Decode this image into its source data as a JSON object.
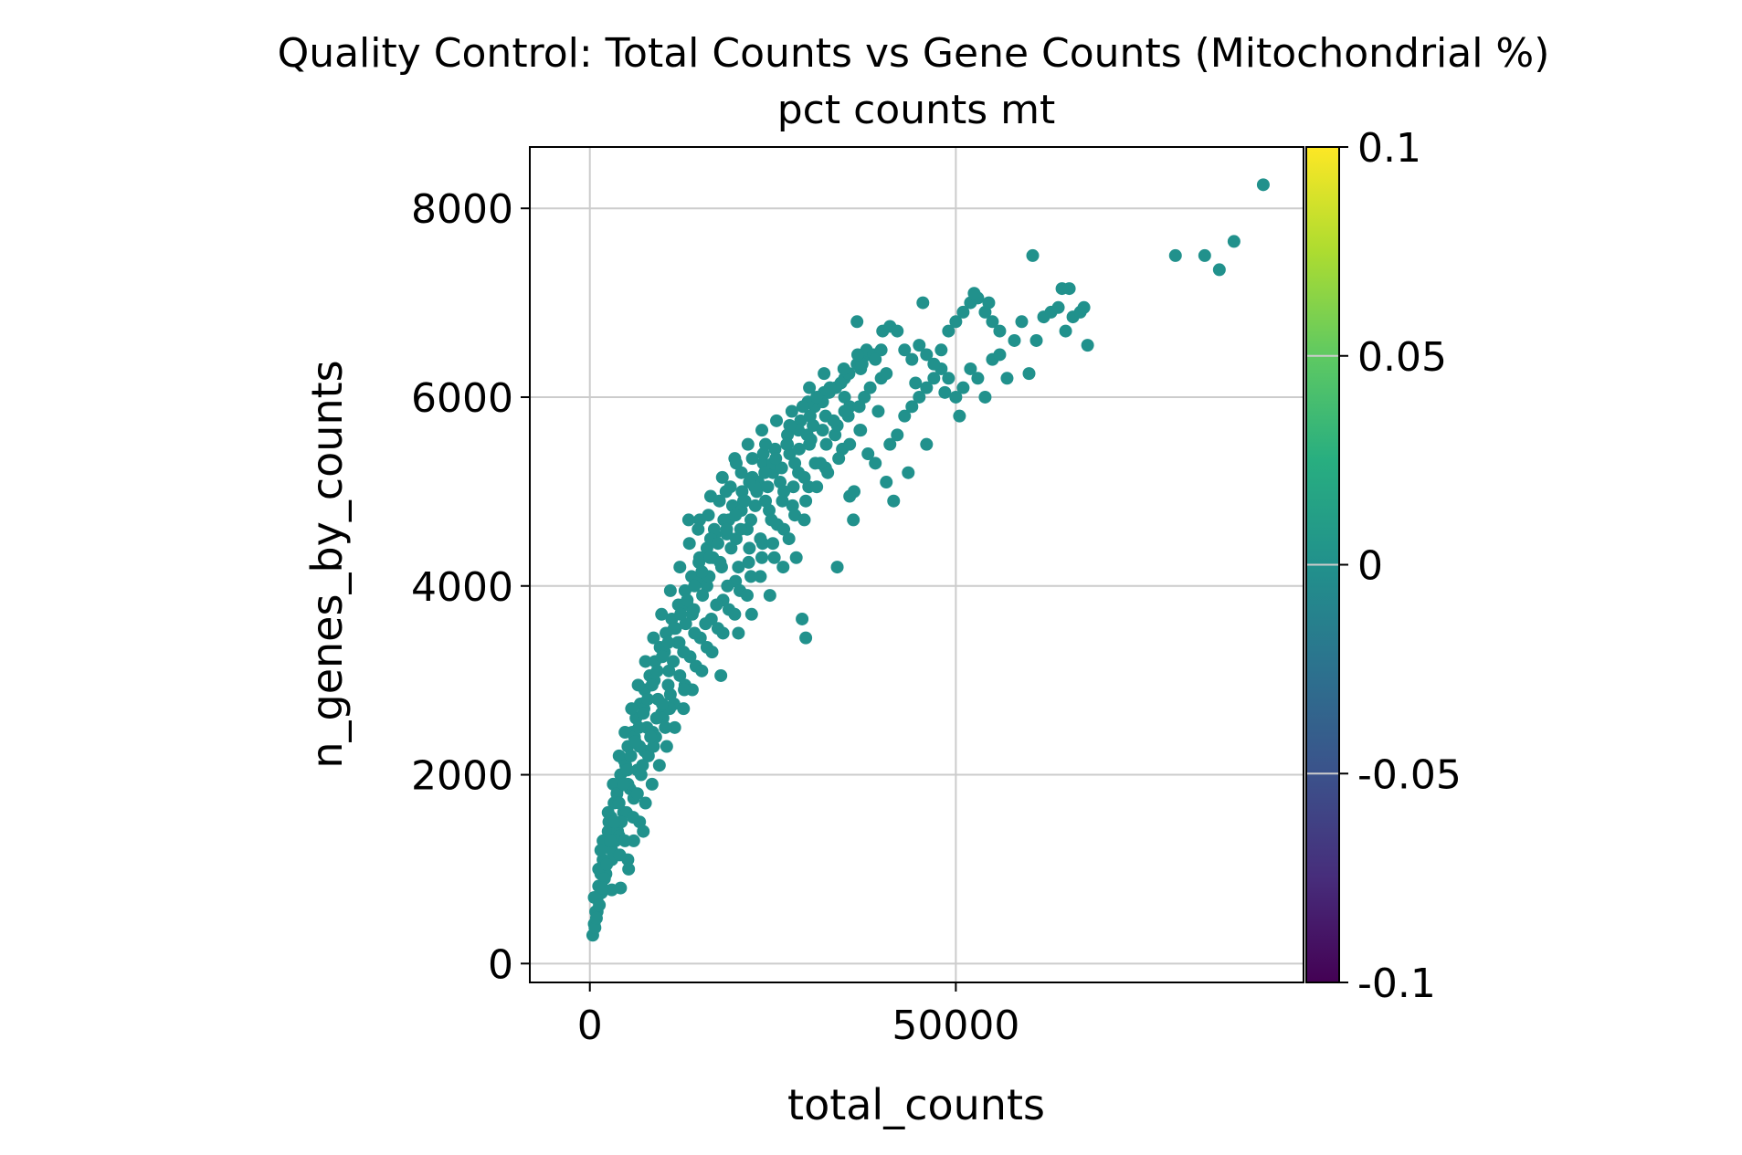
{
  "chart_data": {
    "type": "scatter",
    "title": "Quality Control: Total Counts vs Gene Counts (Mitochondrial %)",
    "subtitle": "pct counts mt",
    "xlabel": "total_counts",
    "ylabel": "n_genes_by_counts",
    "xlim": [
      -8200,
      97500
    ],
    "ylim": [
      -200,
      8650
    ],
    "x_ticks": [
      0,
      50000
    ],
    "x_tick_labels": [
      "0",
      "50000"
    ],
    "y_ticks": [
      0,
      2000,
      4000,
      6000,
      8000
    ],
    "y_tick_labels": [
      "0",
      "2000",
      "4000",
      "6000",
      "8000"
    ],
    "grid": true,
    "point_color": "#21918c",
    "colorbar": {
      "label": "pct counts mt",
      "range": [
        -0.1,
        0.1
      ],
      "ticks": [
        0.1,
        0.05,
        0,
        -0.05,
        -0.1
      ],
      "tick_labels": [
        "0.1",
        "0.05",
        "0",
        "-0.05",
        "-0.1"
      ],
      "colormap": "viridis"
    },
    "points_summary": "~3000 cells; dense band from (0,300) curving up to (35000,6000); sampled points below",
    "points": [
      [
        400,
        300
      ],
      [
        600,
        420
      ],
      [
        800,
        550
      ],
      [
        1000,
        700
      ],
      [
        1200,
        820
      ],
      [
        1500,
        950
      ],
      [
        1800,
        1100
      ],
      [
        2100,
        1250
      ],
      [
        2500,
        1400
      ],
      [
        2900,
        1550
      ],
      [
        3300,
        1700
      ],
      [
        3800,
        1850
      ],
      [
        4200,
        2000
      ],
      [
        4700,
        2150
      ],
      [
        5200,
        2300
      ],
      [
        5800,
        2450
      ],
      [
        6300,
        2600
      ],
      [
        6900,
        2750
      ],
      [
        7500,
        2900
      ],
      [
        8200,
        3050
      ],
      [
        8900,
        3200
      ],
      [
        9600,
        3350
      ],
      [
        10400,
        3500
      ],
      [
        11200,
        3650
      ],
      [
        12100,
        3800
      ],
      [
        13000,
        3950
      ],
      [
        13900,
        4100
      ],
      [
        14900,
        4250
      ],
      [
        16000,
        4400
      ],
      [
        17100,
        4550
      ],
      [
        18300,
        4700
      ],
      [
        19500,
        4850
      ],
      [
        20800,
        5000
      ],
      [
        22200,
        5150
      ],
      [
        23700,
        5300
      ],
      [
        25300,
        5450
      ],
      [
        27000,
        5600
      ],
      [
        28800,
        5750
      ],
      [
        30700,
        5900
      ],
      [
        32700,
        6050
      ],
      [
        34800,
        6200
      ],
      [
        36500,
        6350
      ],
      [
        38000,
        6450
      ],
      [
        1000,
        550
      ],
      [
        1600,
        750
      ],
      [
        2200,
        950
      ],
      [
        3000,
        1200
      ],
      [
        3800,
        1400
      ],
      [
        4600,
        1600
      ],
      [
        5500,
        1850
      ],
      [
        6500,
        2050
      ],
      [
        7500,
        2250
      ],
      [
        8600,
        2450
      ],
      [
        9800,
        2650
      ],
      [
        11000,
        2850
      ],
      [
        12300,
        3050
      ],
      [
        13700,
        3250
      ],
      [
        15100,
        3450
      ],
      [
        16600,
        3650
      ],
      [
        18200,
        3850
      ],
      [
        19900,
        4050
      ],
      [
        21700,
        4250
      ],
      [
        23600,
        4450
      ],
      [
        25600,
        4650
      ],
      [
        27700,
        4850
      ],
      [
        29900,
        5050
      ],
      [
        32200,
        5250
      ],
      [
        34500,
        5450
      ],
      [
        36900,
        5650
      ],
      [
        39400,
        5850
      ],
      [
        600,
        700
      ],
      [
        1200,
        1000
      ],
      [
        1800,
        1300
      ],
      [
        2500,
        1600
      ],
      [
        3200,
        1900
      ],
      [
        4000,
        2200
      ],
      [
        4800,
        2450
      ],
      [
        5700,
        2700
      ],
      [
        6600,
        2950
      ],
      [
        7600,
        3200
      ],
      [
        8700,
        3450
      ],
      [
        9800,
        3700
      ],
      [
        11000,
        3950
      ],
      [
        12300,
        4200
      ],
      [
        13600,
        4450
      ],
      [
        15000,
        4700
      ],
      [
        16500,
        4950
      ],
      [
        18100,
        5150
      ],
      [
        19800,
        5350
      ],
      [
        21600,
        5500
      ],
      [
        23500,
        5650
      ],
      [
        25500,
        5750
      ],
      [
        27600,
        5850
      ],
      [
        29800,
        5950
      ],
      [
        32000,
        6050
      ],
      [
        34300,
        6150
      ],
      [
        2000,
        900
      ],
      [
        3000,
        1100
      ],
      [
        4000,
        1350
      ],
      [
        5000,
        1600
      ],
      [
        6000,
        1750
      ],
      [
        7000,
        2000
      ],
      [
        8000,
        2200
      ],
      [
        9000,
        2400
      ],
      [
        10000,
        2600
      ],
      [
        11500,
        2750
      ],
      [
        13000,
        2950
      ],
      [
        14500,
        3150
      ],
      [
        16000,
        3350
      ],
      [
        17500,
        3550
      ],
      [
        19000,
        3750
      ],
      [
        20500,
        3950
      ],
      [
        22000,
        4100
      ],
      [
        23500,
        4300
      ],
      [
        25000,
        4450
      ],
      [
        26500,
        4600
      ],
      [
        28000,
        4750
      ],
      [
        29500,
        4900
      ],
      [
        31000,
        5050
      ],
      [
        32500,
        5200
      ],
      [
        34000,
        5350
      ],
      [
        35500,
        5500
      ],
      [
        37000,
        5650
      ],
      [
        1500,
        1200
      ],
      [
        2600,
        1500
      ],
      [
        3700,
        1800
      ],
      [
        4900,
        2100
      ],
      [
        6100,
        2400
      ],
      [
        7400,
        2700
      ],
      [
        8800,
        3000
      ],
      [
        10200,
        3300
      ],
      [
        11700,
        3550
      ],
      [
        13300,
        3800
      ],
      [
        15000,
        4050
      ],
      [
        16800,
        4300
      ],
      [
        18700,
        4550
      ],
      [
        20700,
        4800
      ],
      [
        22800,
        5000
      ],
      [
        25000,
        5200
      ],
      [
        27300,
        5400
      ],
      [
        29700,
        5600
      ],
      [
        32200,
        5800
      ],
      [
        34800,
        6000
      ],
      [
        12000,
        3400
      ],
      [
        14000,
        3700
      ],
      [
        16000,
        4000
      ],
      [
        18000,
        4200
      ],
      [
        20000,
        4500
      ],
      [
        22000,
        4700
      ],
      [
        24000,
        4900
      ],
      [
        26000,
        5100
      ],
      [
        28000,
        5300
      ],
      [
        30000,
        5500
      ],
      [
        17000,
        4600
      ],
      [
        19000,
        4700
      ],
      [
        21000,
        4900
      ],
      [
        23000,
        5100
      ],
      [
        25000,
        5300
      ],
      [
        27000,
        5500
      ],
      [
        15000,
        4300
      ],
      [
        16500,
        4500
      ],
      [
        21500,
        4600
      ],
      [
        24500,
        4800
      ],
      [
        28500,
        5200
      ],
      [
        31500,
        5300
      ],
      [
        33500,
        5600
      ],
      [
        35500,
        5900
      ],
      [
        37500,
        6000
      ],
      [
        30500,
        5700
      ],
      [
        26500,
        5000
      ],
      [
        3500,
        1300
      ],
      [
        4300,
        1500
      ],
      [
        5200,
        1900
      ],
      [
        6800,
        2300
      ],
      [
        7800,
        2500
      ],
      [
        9300,
        2800
      ],
      [
        10800,
        3100
      ],
      [
        12800,
        3300
      ],
      [
        14300,
        3500
      ],
      [
        15800,
        3600
      ],
      [
        17300,
        3800
      ],
      [
        18800,
        4000
      ],
      [
        20300,
        4200
      ],
      [
        21800,
        4400
      ],
      [
        23300,
        4500
      ],
      [
        24800,
        4700
      ],
      [
        26300,
        4900
      ],
      [
        27800,
        5050
      ],
      [
        29300,
        5150
      ],
      [
        30800,
        5300
      ],
      [
        32300,
        5500
      ],
      [
        33800,
        5700
      ],
      [
        35300,
        5800
      ],
      [
        36800,
        5900
      ],
      [
        38300,
        6100
      ],
      [
        39800,
        6200
      ],
      [
        4200,
        800
      ],
      [
        5200,
        1100
      ],
      [
        6000,
        1300
      ],
      [
        6800,
        1500
      ],
      [
        7600,
        1700
      ],
      [
        8500,
        1900
      ],
      [
        9500,
        2100
      ],
      [
        10500,
        2300
      ],
      [
        11600,
        2500
      ],
      [
        12800,
        2700
      ],
      [
        14000,
        2900
      ],
      [
        15300,
        3100
      ],
      [
        16700,
        3300
      ],
      [
        18200,
        3500
      ],
      [
        19800,
        3700
      ],
      [
        21500,
        3900
      ],
      [
        23300,
        4100
      ],
      [
        25200,
        4300
      ],
      [
        27200,
        4500
      ],
      [
        29300,
        4700
      ],
      [
        5300,
        1000
      ],
      [
        7300,
        1400
      ],
      [
        10900,
        2700
      ],
      [
        12900,
        2900
      ],
      [
        8700,
        2300
      ],
      [
        10300,
        2500
      ],
      [
        17900,
        3050
      ],
      [
        20300,
        3500
      ],
      [
        22100,
        3700
      ],
      [
        24600,
        3900
      ],
      [
        26400,
        4200
      ],
      [
        28200,
        4300
      ],
      [
        29000,
        3650
      ],
      [
        29500,
        3450
      ],
      [
        33800,
        4200
      ],
      [
        36000,
        4700
      ],
      [
        35500,
        4950
      ],
      [
        36100,
        5000
      ],
      [
        38000,
        5400
      ],
      [
        39000,
        5300
      ],
      [
        40500,
        5100
      ],
      [
        41000,
        5500
      ],
      [
        42000,
        5600
      ],
      [
        43000,
        5800
      ],
      [
        44000,
        5900
      ],
      [
        45000,
        6000
      ],
      [
        46000,
        6100
      ],
      [
        47000,
        6200
      ],
      [
        48000,
        6300
      ],
      [
        49000,
        6200
      ],
      [
        50000,
        6000
      ],
      [
        51000,
        6100
      ],
      [
        52000,
        6300
      ],
      [
        53000,
        6200
      ],
      [
        54000,
        6000
      ],
      [
        55000,
        6400
      ],
      [
        56000,
        6450
      ],
      [
        57000,
        6200
      ],
      [
        58000,
        6600
      ],
      [
        59000,
        6800
      ],
      [
        60000,
        6250
      ],
      [
        61000,
        6600
      ],
      [
        62000,
        6850
      ],
      [
        63000,
        6900
      ],
      [
        64000,
        6950
      ],
      [
        65000,
        6700
      ],
      [
        66000,
        6850
      ],
      [
        67000,
        6900
      ],
      [
        68000,
        6550
      ],
      [
        67500,
        6950
      ],
      [
        64500,
        7150
      ],
      [
        65500,
        7150
      ],
      [
        60500,
        7500
      ],
      [
        40000,
        6700
      ],
      [
        41000,
        6750
      ],
      [
        42000,
        6700
      ],
      [
        43000,
        6500
      ],
      [
        44000,
        6400
      ],
      [
        45000,
        6550
      ],
      [
        46000,
        6450
      ],
      [
        47000,
        6350
      ],
      [
        48000,
        6500
      ],
      [
        49000,
        6700
      ],
      [
        50000,
        6800
      ],
      [
        51000,
        6900
      ],
      [
        52000,
        7000
      ],
      [
        53000,
        7050
      ],
      [
        54000,
        6900
      ],
      [
        55000,
        6800
      ],
      [
        56000,
        6700
      ],
      [
        45500,
        7000
      ],
      [
        52500,
        7100
      ],
      [
        54500,
        7000
      ],
      [
        50500,
        5800
      ],
      [
        48500,
        6050
      ],
      [
        44500,
        6150
      ],
      [
        46000,
        5500
      ],
      [
        43500,
        5200
      ],
      [
        41500,
        4900
      ],
      [
        36500,
        6800
      ],
      [
        37800,
        6500
      ],
      [
        38800,
        6450
      ],
      [
        39800,
        6500
      ],
      [
        40500,
        6250
      ],
      [
        37000,
        6300
      ],
      [
        80000,
        7500
      ],
      [
        84000,
        7500
      ],
      [
        86000,
        7350
      ],
      [
        88000,
        7650
      ],
      [
        92000,
        8250
      ],
      [
        3000,
        780
      ],
      [
        4100,
        1150
      ],
      [
        4800,
        1300
      ],
      [
        5900,
        1550
      ],
      [
        6500,
        1800
      ],
      [
        7200,
        2100
      ],
      [
        8300,
        2400
      ],
      [
        9100,
        2600
      ],
      [
        9900,
        2750
      ],
      [
        10700,
        2950
      ],
      [
        11400,
        3200
      ],
      [
        12200,
        3400
      ],
      [
        13100,
        3600
      ],
      [
        14200,
        3750
      ],
      [
        15400,
        3900
      ],
      [
        16300,
        4100
      ],
      [
        17800,
        4250
      ],
      [
        19300,
        4400
      ],
      [
        20600,
        4600
      ],
      [
        22600,
        4850
      ],
      [
        24300,
        5050
      ],
      [
        26200,
        5250
      ],
      [
        28600,
        5450
      ],
      [
        30200,
        5550
      ],
      [
        31800,
        5650
      ],
      [
        33300,
        5750
      ],
      [
        34800,
        5850
      ],
      [
        700,
        380
      ],
      [
        900,
        480
      ],
      [
        1300,
        620
      ],
      [
        1700,
        800
      ],
      [
        2300,
        1050
      ],
      [
        2800,
        1300
      ],
      [
        3400,
        1500
      ],
      [
        4000,
        1700
      ],
      [
        4600,
        1900
      ],
      [
        5100,
        2050
      ],
      [
        5600,
        2200
      ],
      [
        6200,
        2350
      ],
      [
        6700,
        2500
      ],
      [
        7300,
        2650
      ],
      [
        7900,
        2800
      ],
      [
        8500,
        2950
      ],
      [
        9200,
        3100
      ],
      [
        9900,
        3250
      ],
      [
        10700,
        3400
      ],
      [
        11500,
        3550
      ],
      [
        12400,
        3700
      ],
      [
        13300,
        3850
      ],
      [
        14300,
        4000
      ],
      [
        15300,
        4150
      ],
      [
        16400,
        4300
      ],
      [
        17500,
        4450
      ],
      [
        18700,
        4600
      ],
      [
        19900,
        4750
      ],
      [
        21200,
        4900
      ],
      [
        22500,
        5050
      ],
      [
        23900,
        5200
      ],
      [
        25400,
        5350
      ],
      [
        26900,
        5500
      ],
      [
        28500,
        5650
      ],
      [
        30100,
        5800
      ],
      [
        31800,
        5950
      ],
      [
        33600,
        6100
      ],
      [
        35400,
        6250
      ],
      [
        37200,
        6350
      ],
      [
        39000,
        6400
      ],
      [
        13500,
        4700
      ],
      [
        14800,
        4600
      ],
      [
        16200,
        4750
      ],
      [
        17700,
        4900
      ],
      [
        19200,
        5050
      ],
      [
        20700,
        5200
      ],
      [
        22200,
        5350
      ],
      [
        23700,
        5400
      ],
      [
        20000,
        5300
      ],
      [
        21800,
        5100
      ],
      [
        18600,
        5000
      ],
      [
        24000,
        5500
      ],
      [
        27300,
        5700
      ],
      [
        29100,
        5900
      ],
      [
        31000,
        6000
      ],
      [
        32800,
        6100
      ],
      [
        34700,
        6300
      ],
      [
        36600,
        6450
      ],
      [
        30000,
        6100
      ],
      [
        32000,
        6250
      ]
    ]
  }
}
